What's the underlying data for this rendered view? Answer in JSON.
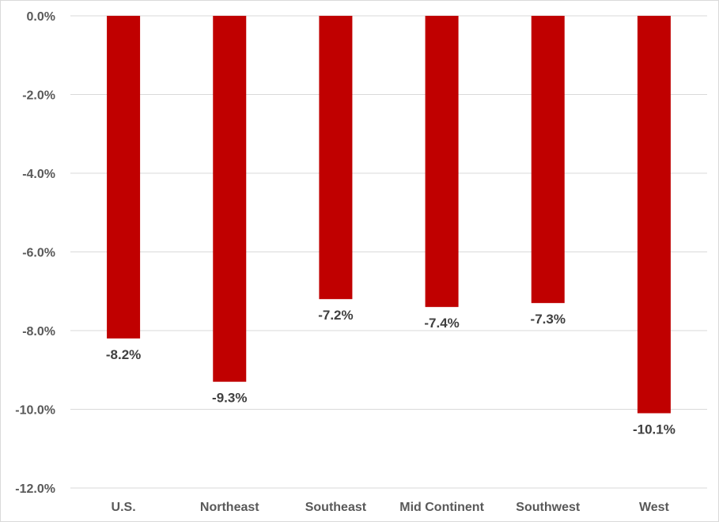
{
  "chart_data": {
    "type": "bar",
    "title": "",
    "xlabel": "",
    "ylabel": "",
    "categories": [
      "U.S.",
      "Northeast",
      "Southeast",
      "Mid Continent",
      "Southwest",
      "West"
    ],
    "values": [
      -8.2,
      -9.3,
      -7.2,
      -7.4,
      -7.3,
      -10.1
    ],
    "data_labels": [
      "-8.2%",
      "-9.3%",
      "-7.2%",
      "-7.4%",
      "-7.3%",
      "-10.1%"
    ],
    "ylim": [
      -12.0,
      0.0
    ],
    "y_ticks": [
      0.0,
      -2.0,
      -4.0,
      -6.0,
      -8.0,
      -10.0,
      -12.0
    ],
    "y_tick_labels": [
      "0.0%",
      "-2.0%",
      "-4.0%",
      "-6.0%",
      "-8.0%",
      "-10.0%",
      "-12.0%"
    ],
    "grid": true,
    "legend": "none",
    "colors": {
      "bar": "#c00000",
      "grid": "#d9d9d9",
      "axis_text": "#595959",
      "data_label_text": "#404040"
    }
  }
}
